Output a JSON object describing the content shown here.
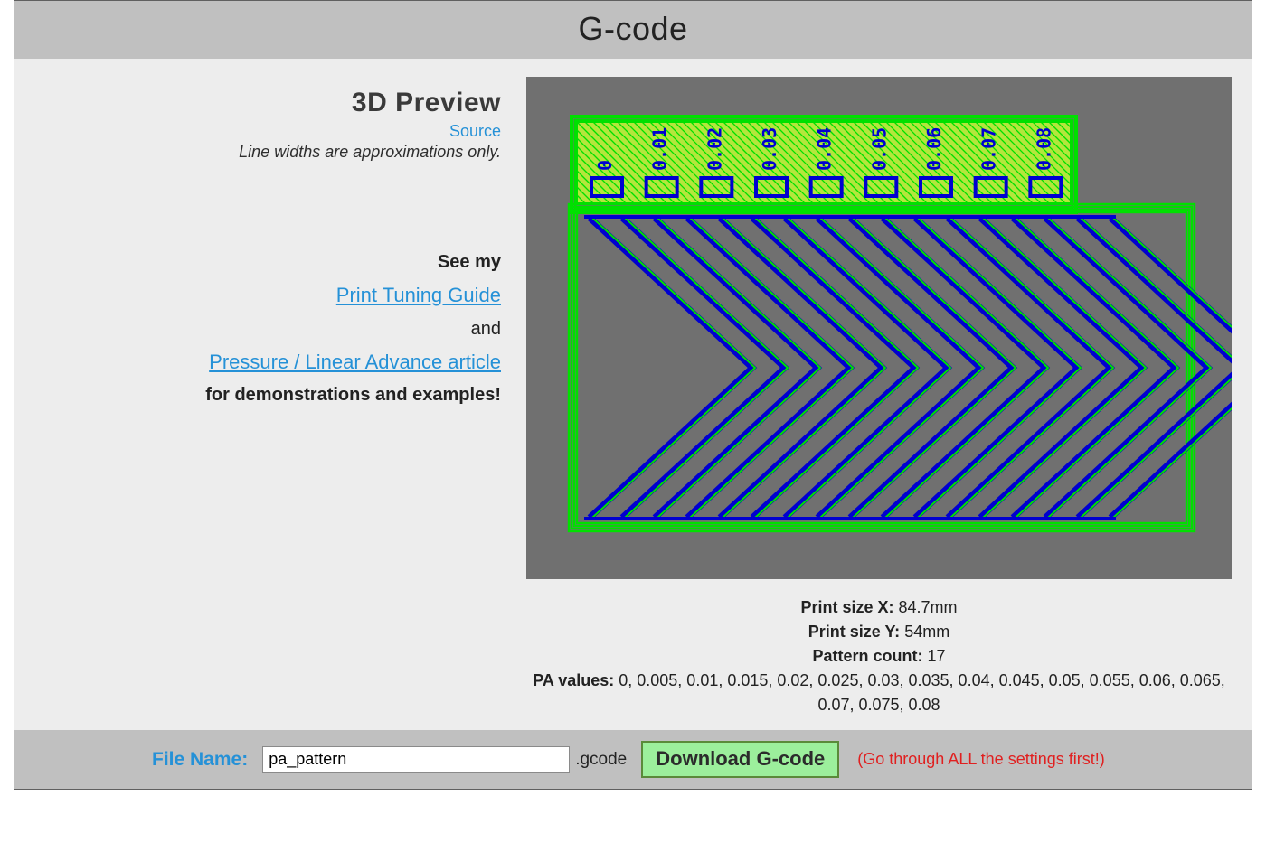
{
  "header": {
    "title": "G-code"
  },
  "left": {
    "preview_title": "3D Preview",
    "source_link": "Source",
    "approx_note": "Line widths are approximations only.",
    "see_my": "See my",
    "tuning_guide": "Print Tuning Guide",
    "and": "and",
    "pa_article": "Pressure / Linear Advance article",
    "for_demos": "for demonstrations and examples!"
  },
  "preview": {
    "bg_color": "#707070",
    "outline_color": "#00e000",
    "fill_color": "#b4e63c",
    "chevron_color": "#0000d0",
    "pattern_count": 17,
    "header_labels": [
      "0",
      "0.01",
      "0.02",
      "0.03",
      "0.04",
      "0.05",
      "0.06",
      "0.07",
      "0.08"
    ]
  },
  "stats": {
    "print_x_label": "Print size X:",
    "print_x_value": "84.7mm",
    "print_y_label": "Print size Y:",
    "print_y_value": "54mm",
    "pattern_count_label": "Pattern count:",
    "pattern_count_value": "17",
    "pa_values_label": "PA values:",
    "pa_values_value": "0, 0.005, 0.01, 0.015, 0.02, 0.025, 0.03, 0.035, 0.04, 0.045, 0.05, 0.055, 0.06, 0.065, 0.07, 0.075, 0.08"
  },
  "footer": {
    "file_name_label": "File Name:",
    "file_name_value": "pa_pattern",
    "extension": ".gcode",
    "download_label": "Download G-code",
    "warning": "(Go through ALL the settings first!)"
  }
}
